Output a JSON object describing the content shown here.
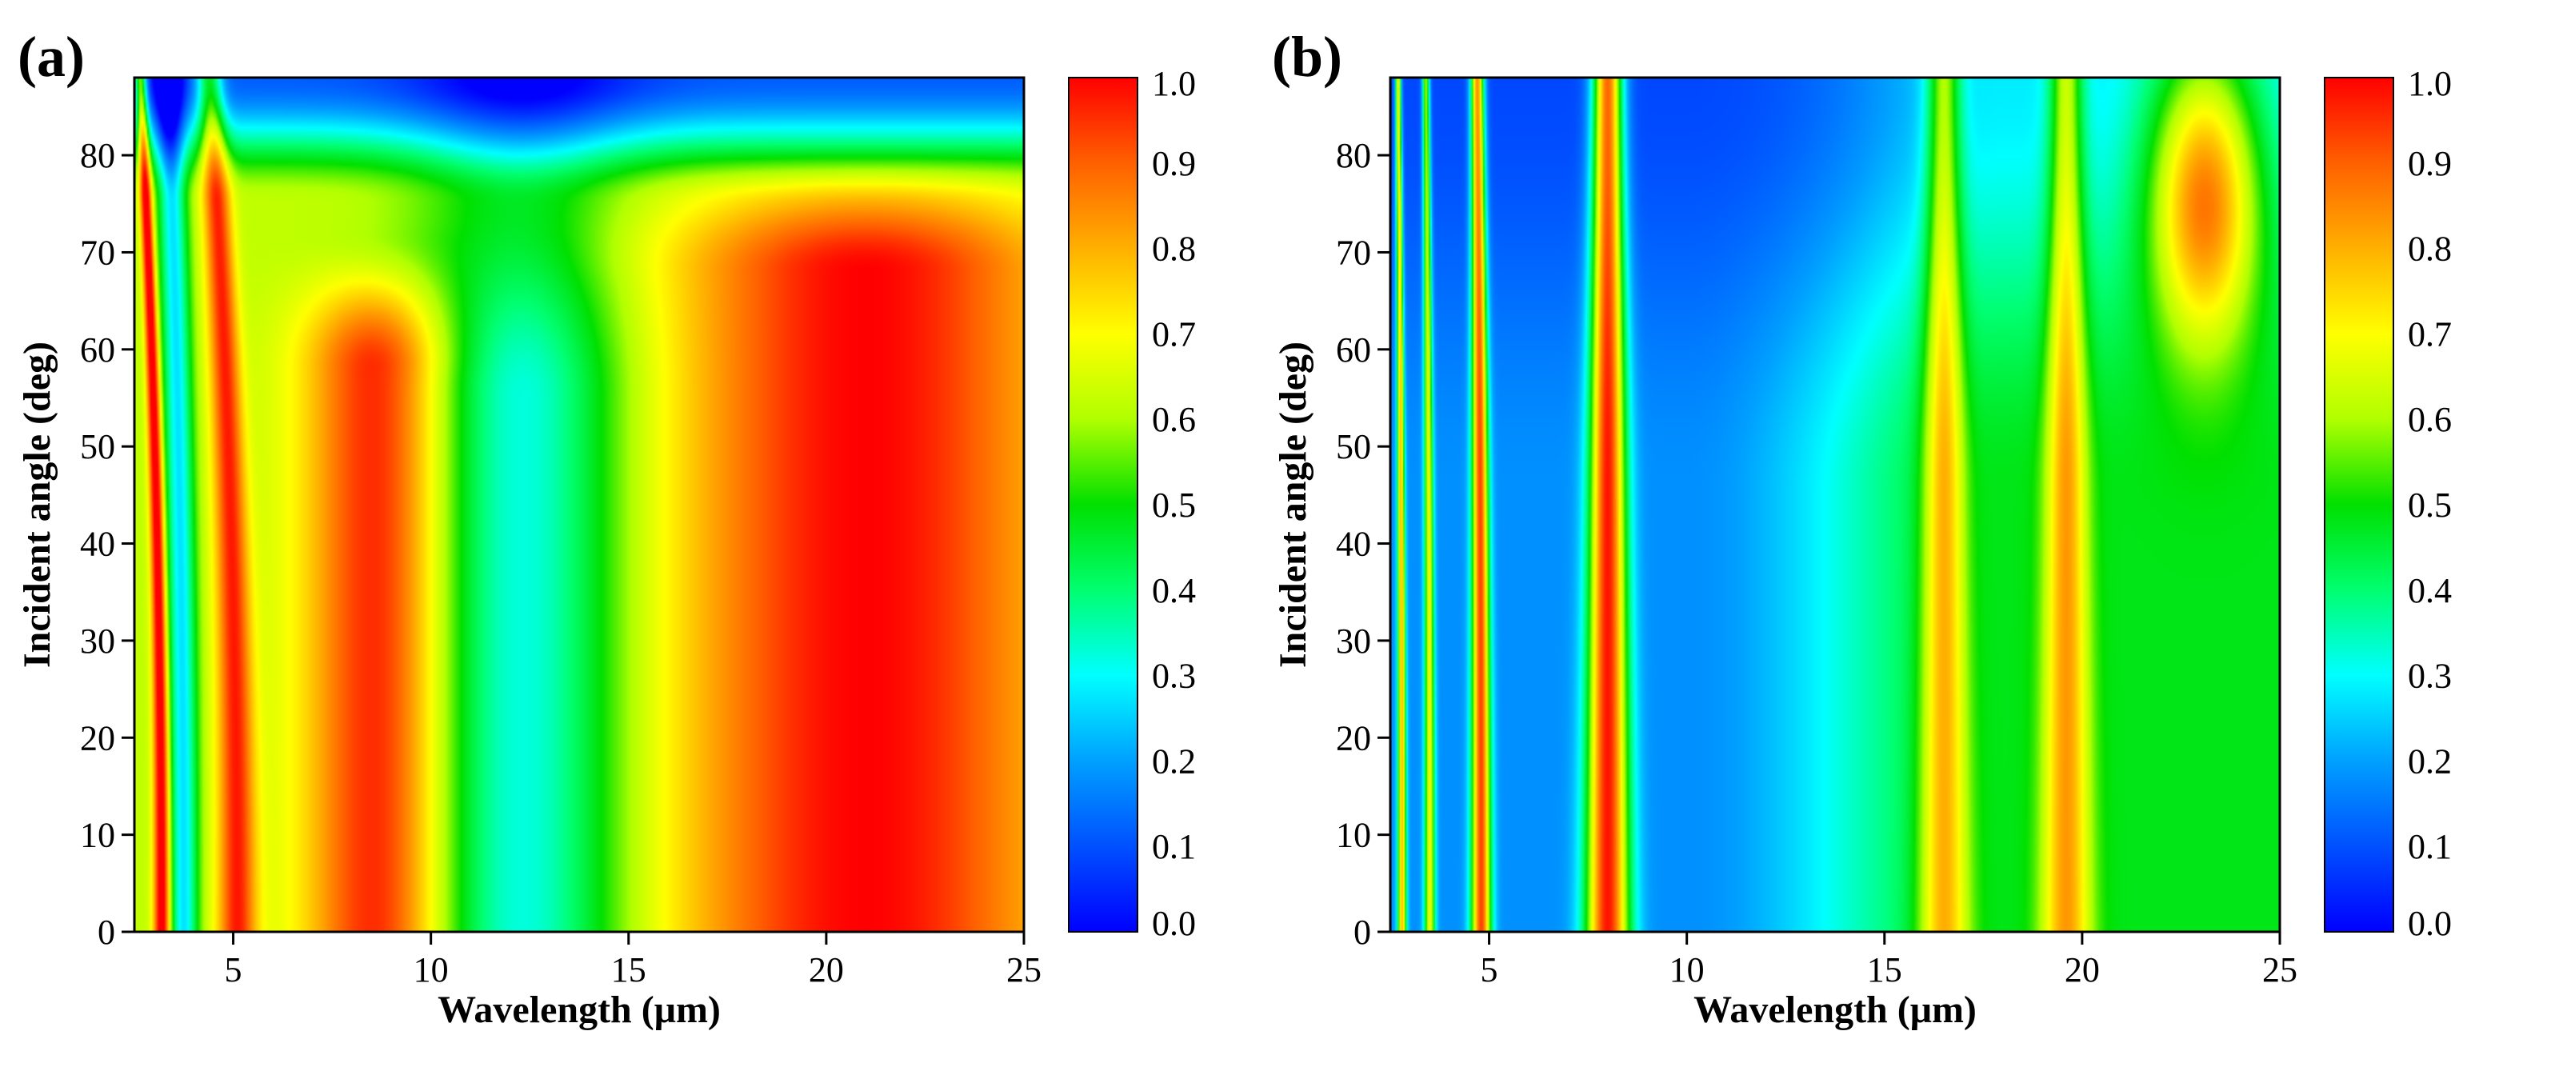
{
  "figure": {
    "panel_count": 2
  },
  "colorscale": {
    "name": "jet",
    "stops": [
      "#0000ff",
      "#0050ff",
      "#00a0ff",
      "#00ffff",
      "#00ff70",
      "#00e000",
      "#b0ff00",
      "#ffff00",
      "#ffb000",
      "#ff6000",
      "#ff0000"
    ],
    "stop_positions": [
      0,
      0.1,
      0.2,
      0.3,
      0.4,
      0.5,
      0.6,
      0.7,
      0.8,
      0.9,
      1.0
    ]
  },
  "chart_data": [
    {
      "type": "heatmap",
      "panel_label": "(a)",
      "xlabel": "Wavelength (μm)",
      "ylabel": "Incident angle (deg)",
      "xlim": [
        2.5,
        25
      ],
      "ylim": [
        0,
        88
      ],
      "xticks": [
        5,
        10,
        15,
        20,
        25
      ],
      "xtick_labels": [
        "5",
        "10",
        "15",
        "20",
        "25"
      ],
      "yticks": [
        0,
        10,
        20,
        30,
        40,
        50,
        60,
        70,
        80
      ],
      "ytick_labels": [
        "0",
        "10",
        "20",
        "30",
        "40",
        "50",
        "60",
        "70",
        "80"
      ],
      "colorbar": {
        "range": [
          0.0,
          1.0
        ],
        "ticks": [
          0,
          0.1,
          0.2,
          0.3,
          0.4,
          0.5,
          0.6,
          0.7,
          0.8,
          0.9,
          1.0
        ],
        "tick_labels": [
          "0.0",
          "0.1",
          "0.2",
          "0.3",
          "0.4",
          "0.5",
          "0.6",
          "0.7",
          "0.8",
          "0.9",
          "1.0"
        ]
      },
      "features": [
        {
          "kind": "baseline",
          "base": 0.62,
          "top_value": 0.12,
          "top_band_width_deg": 8
        },
        {
          "kind": "broad_peak",
          "center_um": 8.7,
          "width_um": 1.3,
          "amplitude": 0.38,
          "angle_extent_deg": 72
        },
        {
          "kind": "dip",
          "center_um": 12.3,
          "width_um": 1.9,
          "amplitude": 0.32,
          "angle_extent_deg": 75
        },
        {
          "kind": "broad_peak",
          "center_um": 21.0,
          "width_um": 3.5,
          "amplitude": 0.38,
          "angle_extent_deg": 82
        },
        {
          "kind": "narrow_line",
          "center_um": 3.2,
          "width_um": 0.15,
          "amplitude": 0.45,
          "angle_shift_um": 0.55
        },
        {
          "kind": "narrow_line",
          "center_um": 5.1,
          "width_um": 0.35,
          "amplitude": 0.35,
          "angle_shift_um": 0.7
        },
        {
          "kind": "dip_line",
          "center_um": 3.75,
          "width_um": 0.25,
          "amplitude": 0.35,
          "angle_shift_um": 0.4
        }
      ],
      "z_range": [
        0.0,
        1.0
      ]
    },
    {
      "type": "heatmap",
      "panel_label": "(b)",
      "xlabel": "Wavelength (μm)",
      "ylabel": "Incident angle (deg)",
      "xlim": [
        2.5,
        25
      ],
      "ylim": [
        0,
        88
      ],
      "xticks": [
        5,
        10,
        15,
        20,
        25
      ],
      "xtick_labels": [
        "5",
        "10",
        "15",
        "20",
        "25"
      ],
      "yticks": [
        0,
        10,
        20,
        30,
        40,
        50,
        60,
        70,
        80
      ],
      "ytick_labels": [
        "0",
        "10",
        "20",
        "30",
        "40",
        "50",
        "60",
        "70",
        "80"
      ],
      "colorbar": {
        "range": [
          0.0,
          1.0
        ],
        "ticks": [
          0,
          0.1,
          0.2,
          0.3,
          0.4,
          0.5,
          0.6,
          0.7,
          0.8,
          0.9,
          1.0
        ],
        "tick_labels": [
          "0.0",
          "0.1",
          "0.2",
          "0.3",
          "0.4",
          "0.5",
          "0.6",
          "0.7",
          "0.8",
          "0.9",
          "1.0"
        ]
      },
      "features": [
        {
          "kind": "baseline_ramp",
          "start_um": 10,
          "value_low": 0.18,
          "value_high": 0.48,
          "top_value": 0.08
        },
        {
          "kind": "narrow_line",
          "center_um": 2.8,
          "width_um": 0.08,
          "amplitude": 0.6,
          "angle_shift_um": 0.1
        },
        {
          "kind": "narrow_line",
          "center_um": 3.5,
          "width_um": 0.1,
          "amplitude": 0.5,
          "angle_shift_um": 0.1
        },
        {
          "kind": "narrow_line",
          "center_um": 4.8,
          "width_um": 0.18,
          "amplitude": 0.75,
          "angle_shift_um": 0.1
        },
        {
          "kind": "narrow_line",
          "center_um": 8.0,
          "width_um": 0.4,
          "amplitude": 0.8,
          "angle_shift_um": 0.0
        },
        {
          "kind": "narrow_line",
          "center_um": 16.5,
          "width_um": 0.45,
          "amplitude": 0.35,
          "angle_shift_um": 0.0
        },
        {
          "kind": "narrow_line",
          "center_um": 19.6,
          "width_um": 0.45,
          "amplitude": 0.35,
          "angle_shift_um": 0.0
        },
        {
          "kind": "spot",
          "center_um": 23.1,
          "center_deg": 76,
          "width_um": 1.0,
          "height_deg": 11,
          "amplitude": 0.55
        }
      ],
      "z_range": [
        0.0,
        1.0
      ]
    }
  ]
}
